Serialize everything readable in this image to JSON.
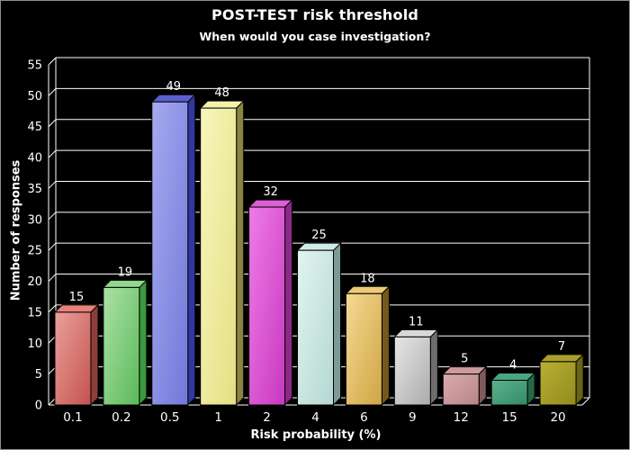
{
  "header": {
    "title": "POST-TEST risk threshold",
    "subtitle": "When would you case investigation?"
  },
  "colors": {
    "background": "#000000",
    "frame_border": "#8f8f8f",
    "grid": "#ffffff",
    "axis": "#ffffff",
    "text": "#ffffff",
    "bar_edge": "#000000"
  },
  "chart_data": {
    "type": "bar",
    "style": "3d-columns",
    "title": "POST-TEST risk threshold",
    "subtitle": "When would you case investigation?",
    "xlabel": "Risk probability (%)",
    "ylabel": "Number of responses",
    "categories": [
      "0.1",
      "0.2",
      "0.5",
      "1",
      "2",
      "4",
      "6",
      "9",
      "12",
      "15",
      "20"
    ],
    "values": [
      15,
      19,
      49,
      48,
      32,
      25,
      18,
      11,
      5,
      4,
      7
    ],
    "ylim": [
      0,
      55
    ],
    "yticks": [
      0,
      5,
      10,
      15,
      20,
      25,
      30,
      35,
      40,
      45,
      50,
      55
    ],
    "grid": true,
    "legend_position": "none",
    "bar_colors": [
      {
        "name": "red",
        "light": "#eca09a",
        "dark": "#c2524e",
        "top": "#e9827b",
        "side": "#8e3e3a"
      },
      {
        "name": "green",
        "light": "#abe2a6",
        "dark": "#5cb85a",
        "top": "#8fd88c",
        "side": "#3b9940"
      },
      {
        "name": "blue",
        "light": "#a6aaf0",
        "dark": "#7178d8",
        "top": "#5a60ce",
        "side": "#32379e"
      },
      {
        "name": "paleyellow",
        "light": "#f8f6bc",
        "dark": "#e4df84",
        "top": "#f4f1a8",
        "side": "#8a8440"
      },
      {
        "name": "magenta",
        "light": "#ee7ce6",
        "dark": "#c838c0",
        "top": "#e05cd8",
        "side": "#8c2a86"
      },
      {
        "name": "palecyan",
        "light": "#e2f4f0",
        "dark": "#b4d8d2",
        "top": "#d0ebe6",
        "side": "#7e9a96"
      },
      {
        "name": "gold",
        "light": "#f4da92",
        "dark": "#d0a444",
        "top": "#ecca78",
        "side": "#74591f"
      },
      {
        "name": "silver",
        "light": "#e6e6e6",
        "dark": "#ababab",
        "top": "#d8d8d8",
        "side": "#6e6e6e"
      },
      {
        "name": "dustypink",
        "light": "#d9acae",
        "dark": "#b78486",
        "top": "#cc9a9c",
        "side": "#7e5a5c"
      },
      {
        "name": "teal",
        "light": "#5cb28e",
        "dark": "#348a62",
        "top": "#4aa67e",
        "side": "#246848"
      },
      {
        "name": "olive",
        "light": "#b8b034",
        "dark": "#928a1e",
        "top": "#a8a02a",
        "side": "#6a6414"
      }
    ]
  }
}
